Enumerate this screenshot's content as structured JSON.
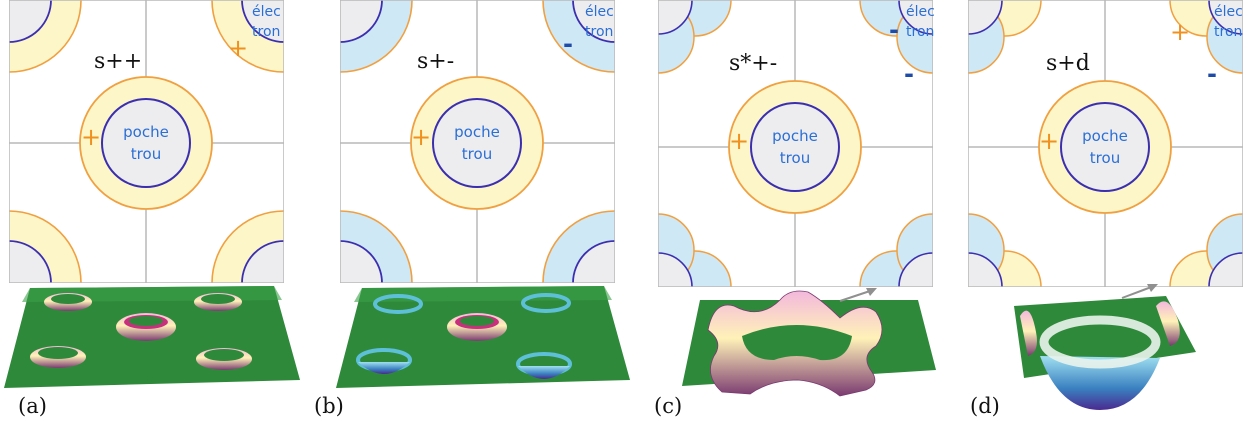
{
  "panels": [
    {
      "id": "a",
      "symmetry": "s++",
      "caption": "(a)",
      "hole_pocket": {
        "line1": "poche",
        "line2": "trou",
        "sign": "+"
      },
      "electron_pocket": {
        "line1": "élec",
        "line2": "tron",
        "sign": "+",
        "style": "quarter",
        "fill": "yellow"
      }
    },
    {
      "id": "b",
      "symmetry": "s+-",
      "caption": "(b)",
      "hole_pocket": {
        "line1": "poche",
        "line2": "trou",
        "sign": "+"
      },
      "electron_pocket": {
        "line1": "élec",
        "line2": "tron",
        "sign": "-",
        "style": "quarter",
        "fill": "blue"
      }
    },
    {
      "id": "c",
      "symmetry": "s*+-",
      "caption": "(c)",
      "hole_pocket": {
        "line1": "poche",
        "line2": "trou",
        "sign": "+"
      },
      "electron_pocket": {
        "line1": "élec",
        "line2": "tron",
        "sign1": "-",
        "sign2": "-",
        "style": "split",
        "fill": "blue"
      }
    },
    {
      "id": "d",
      "symmetry": "s+d",
      "caption": "(d)",
      "hole_pocket": {
        "line1": "poche",
        "line2": "trou",
        "sign": "+"
      },
      "electron_pocket": {
        "line1": "élec",
        "line2": "tron",
        "sign1": "+",
        "sign2": "-",
        "style": "split",
        "fill": "mixed"
      }
    }
  ],
  "colors": {
    "yellow_fill": "#fdf6c8",
    "blue_fill": "#cfe8f6",
    "orange_line": "#f0a040",
    "purple_line": "#3b2fb0",
    "pocket_gray": "#ededf0",
    "grid_gray": "#b8b8b8",
    "green_surface": "#2e8a3a"
  }
}
